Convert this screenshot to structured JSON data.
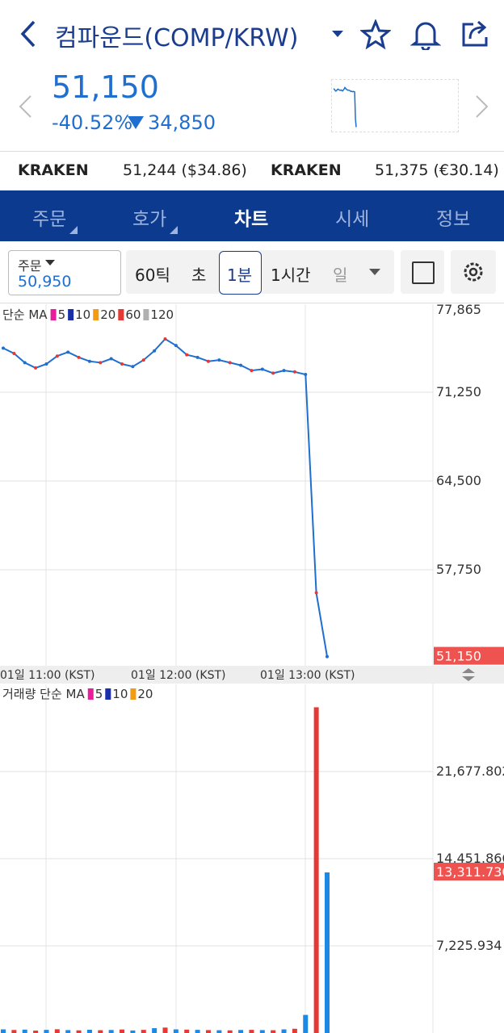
{
  "header": {
    "title": "컴파운드(COMP/KRW)"
  },
  "quote": {
    "price": "51,150",
    "change_pct": "-40.52%",
    "change": "34,850"
  },
  "exchanges": [
    {
      "name": "KRAKEN",
      "price": "51,244 ($34.86)"
    },
    {
      "name": "KRAKEN",
      "price": "51,375 (€30.14)"
    }
  ],
  "tabs": [
    "주문",
    "호가",
    "차트",
    "시세",
    "정보"
  ],
  "order": {
    "label": "주문",
    "price": "50,950"
  },
  "intervals": [
    "60틱",
    "초",
    "1분",
    "1시간",
    "일"
  ],
  "price_chart": {
    "type": "line",
    "color": "#1e6fd0",
    "legend_title": "단순 MA",
    "ma": [
      {
        "name": "5",
        "color": "#e91e9c"
      },
      {
        "name": "10",
        "color": "#1a2fa8"
      },
      {
        "name": "20",
        "color": "#f39c12"
      },
      {
        "name": "60",
        "color": "#e53935"
      },
      {
        "name": "120",
        "color": "#b0b0b0"
      }
    ],
    "ylim": [
      50450,
      77940
    ],
    "yticks": [
      {
        "value": 77865,
        "label": "77,865"
      },
      {
        "value": 71250,
        "label": "71,250"
      },
      {
        "value": 64500,
        "label": "64,500"
      },
      {
        "value": 57750,
        "label": "57,750"
      }
    ],
    "x_labels": [
      "01일 11:00 (KST)",
      "01일 12:00 (KST)",
      "01일 13:00 (KST)"
    ],
    "values": [
      74600,
      74200,
      73500,
      73100,
      73400,
      74000,
      74300,
      73900,
      73600,
      73500,
      73800,
      73400,
      73200,
      73700,
      74400,
      75300,
      74800,
      74100,
      73900,
      73600,
      73700,
      73500,
      73300,
      72900,
      73000,
      72700,
      72900,
      72800,
      72600,
      56000,
      51150
    ],
    "last_label": {
      "value": 51150,
      "label": "51,150"
    }
  },
  "volume_chart": {
    "type": "bar",
    "color": "#1e88e5",
    "legend_title": "거래량 단순 MA",
    "ma": [
      {
        "name": "5",
        "color": "#e91e9c"
      },
      {
        "name": "10",
        "color": "#1a2fa8"
      },
      {
        "name": "20",
        "color": "#f39c12"
      }
    ],
    "ylim": [
      0,
      28900
    ],
    "yticks": [
      {
        "value": 21677.802,
        "label": "21,677.802"
      },
      {
        "value": 14451.866,
        "label": "14,451.866"
      },
      {
        "value": 7225.934,
        "label": "7,225.934"
      }
    ],
    "values": [
      300,
      250,
      280,
      200,
      260,
      310,
      240,
      220,
      270,
      230,
      250,
      290,
      210,
      260,
      400,
      450,
      300,
      280,
      260,
      240,
      230,
      220,
      250,
      260,
      240,
      230,
      300,
      350,
      1500,
      27000,
      13311.73
    ],
    "last_label": {
      "value": 13311.73,
      "label": "13,311.730"
    }
  }
}
